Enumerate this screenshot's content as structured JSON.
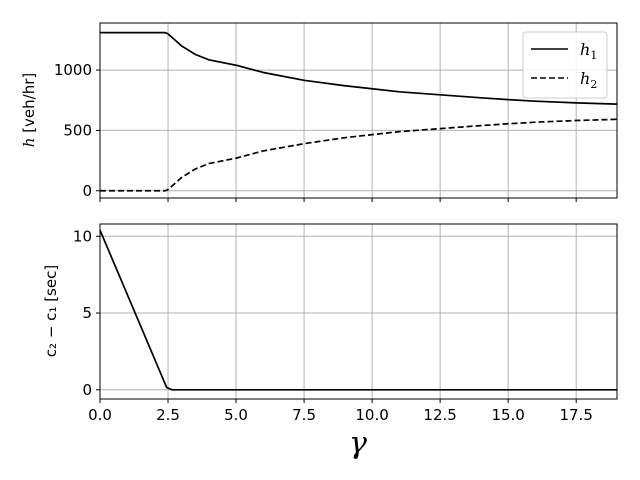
{
  "chart_data": [
    {
      "type": "line",
      "ylabel_var": "h",
      "ylabel_unit": "[veh/hr]",
      "xlim": [
        0,
        19
      ],
      "ylim": [
        -60,
        1390
      ],
      "xticks": [
        0,
        2.5,
        5,
        7.5,
        10,
        12.5,
        15,
        17.5
      ],
      "yticks": [
        0,
        500,
        1000
      ],
      "ytick_labels": [
        "0",
        "500",
        "1000"
      ],
      "grid": true,
      "legend_position": "top-right",
      "series": [
        {
          "name": "h",
          "name_sub": "1",
          "style": "solid",
          "color": "#000000",
          "x": [
            0,
            2.4,
            2.5,
            3,
            3.5,
            4,
            5,
            6,
            7.5,
            9,
            10,
            11,
            12.5,
            14,
            15,
            16,
            17.5,
            19
          ],
          "y": [
            1310,
            1310,
            1300,
            1200,
            1130,
            1085,
            1040,
            980,
            915,
            870,
            845,
            820,
            795,
            770,
            755,
            742,
            728,
            718
          ]
        },
        {
          "name": "h",
          "name_sub": "2",
          "style": "dashed",
          "color": "#000000",
          "x": [
            0,
            2.4,
            2.5,
            3,
            3.5,
            4,
            5,
            6,
            7.5,
            9,
            10,
            11,
            12.5,
            14,
            15,
            16,
            17.5,
            19
          ],
          "y": [
            0,
            0,
            10,
            110,
            180,
            225,
            270,
            330,
            390,
            440,
            465,
            490,
            515,
            540,
            555,
            568,
            582,
            592
          ]
        }
      ]
    },
    {
      "type": "line",
      "ylabel_text": "c₂ − c₁ [sec]",
      "xlabel": "γ",
      "xlim": [
        0,
        19
      ],
      "ylim": [
        -0.6,
        10.8
      ],
      "xticks": [
        0,
        2.5,
        5,
        7.5,
        10,
        12.5,
        15,
        17.5
      ],
      "xtick_labels": [
        "0.0",
        "2.5",
        "5.0",
        "7.5",
        "10.0",
        "12.5",
        "15.0",
        "17.5"
      ],
      "yticks": [
        0,
        5,
        10
      ],
      "ytick_labels": [
        "0",
        "5",
        "10"
      ],
      "grid": true,
      "series": [
        {
          "style": "solid",
          "color": "#000000",
          "x": [
            0,
            2.45,
            2.65,
            19
          ],
          "y": [
            10.4,
            0.15,
            0,
            0
          ]
        }
      ]
    }
  ]
}
